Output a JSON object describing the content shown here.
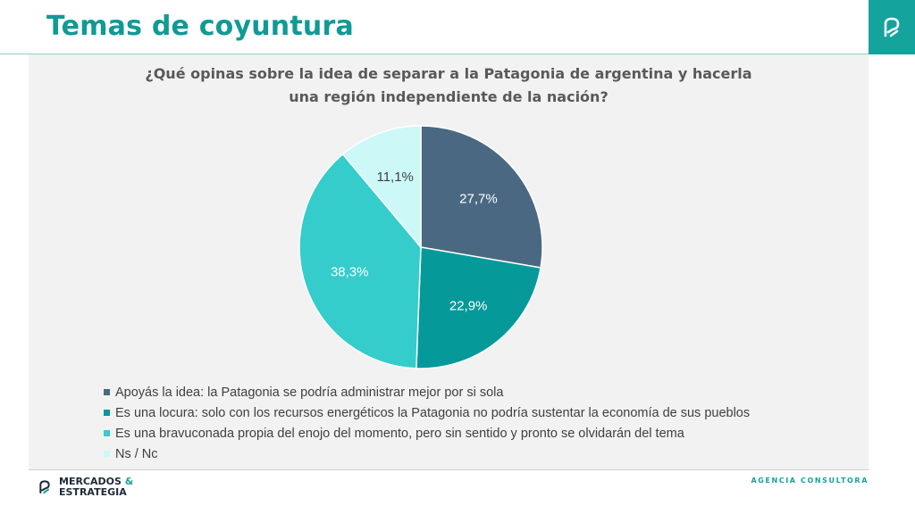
{
  "header": {
    "title": "Temas de coyuntura",
    "brand_icon": "mercados-estrategia-logo-icon"
  },
  "colors": {
    "accent": "#14a39d",
    "title": "#0f9a95",
    "panel": "#f2f2f2"
  },
  "chart_data": {
    "type": "pie",
    "title_line1": "¿Qué opinas sobre la idea de separar a la Patagonia de argentina y hacerla",
    "title_line2": "una región independiente de la nación?",
    "legend_position": "bottom-left",
    "slices": [
      {
        "label": "Apoyás la idea: la Patagonia se podría administrar mejor por si sola",
        "value": 27.7,
        "value_label": "27,7%",
        "color": "#4a6882"
      },
      {
        "label": "Es una locura: solo con los recursos energéticos la Patagonia no podría sustentar la economía de sus pueblos",
        "value": 22.9,
        "value_label": "22,9%",
        "color": "#05999a"
      },
      {
        "label": "Es una bravuconada propia del enojo del momento, pero sin sentido y pronto se olvidarán del tema",
        "value": 38.3,
        "value_label": "38,3%",
        "color": "#35cccc"
      },
      {
        "label": "Ns / Nc",
        "value": 11.1,
        "value_label": "11,1%",
        "color": "#ccf8f8"
      }
    ]
  },
  "footer": {
    "logo_line1": "MERCADOS",
    "logo_amp": "&",
    "logo_line2": "ESTRATEGIA",
    "tagline": "AGENCIA CONSULTORA"
  }
}
